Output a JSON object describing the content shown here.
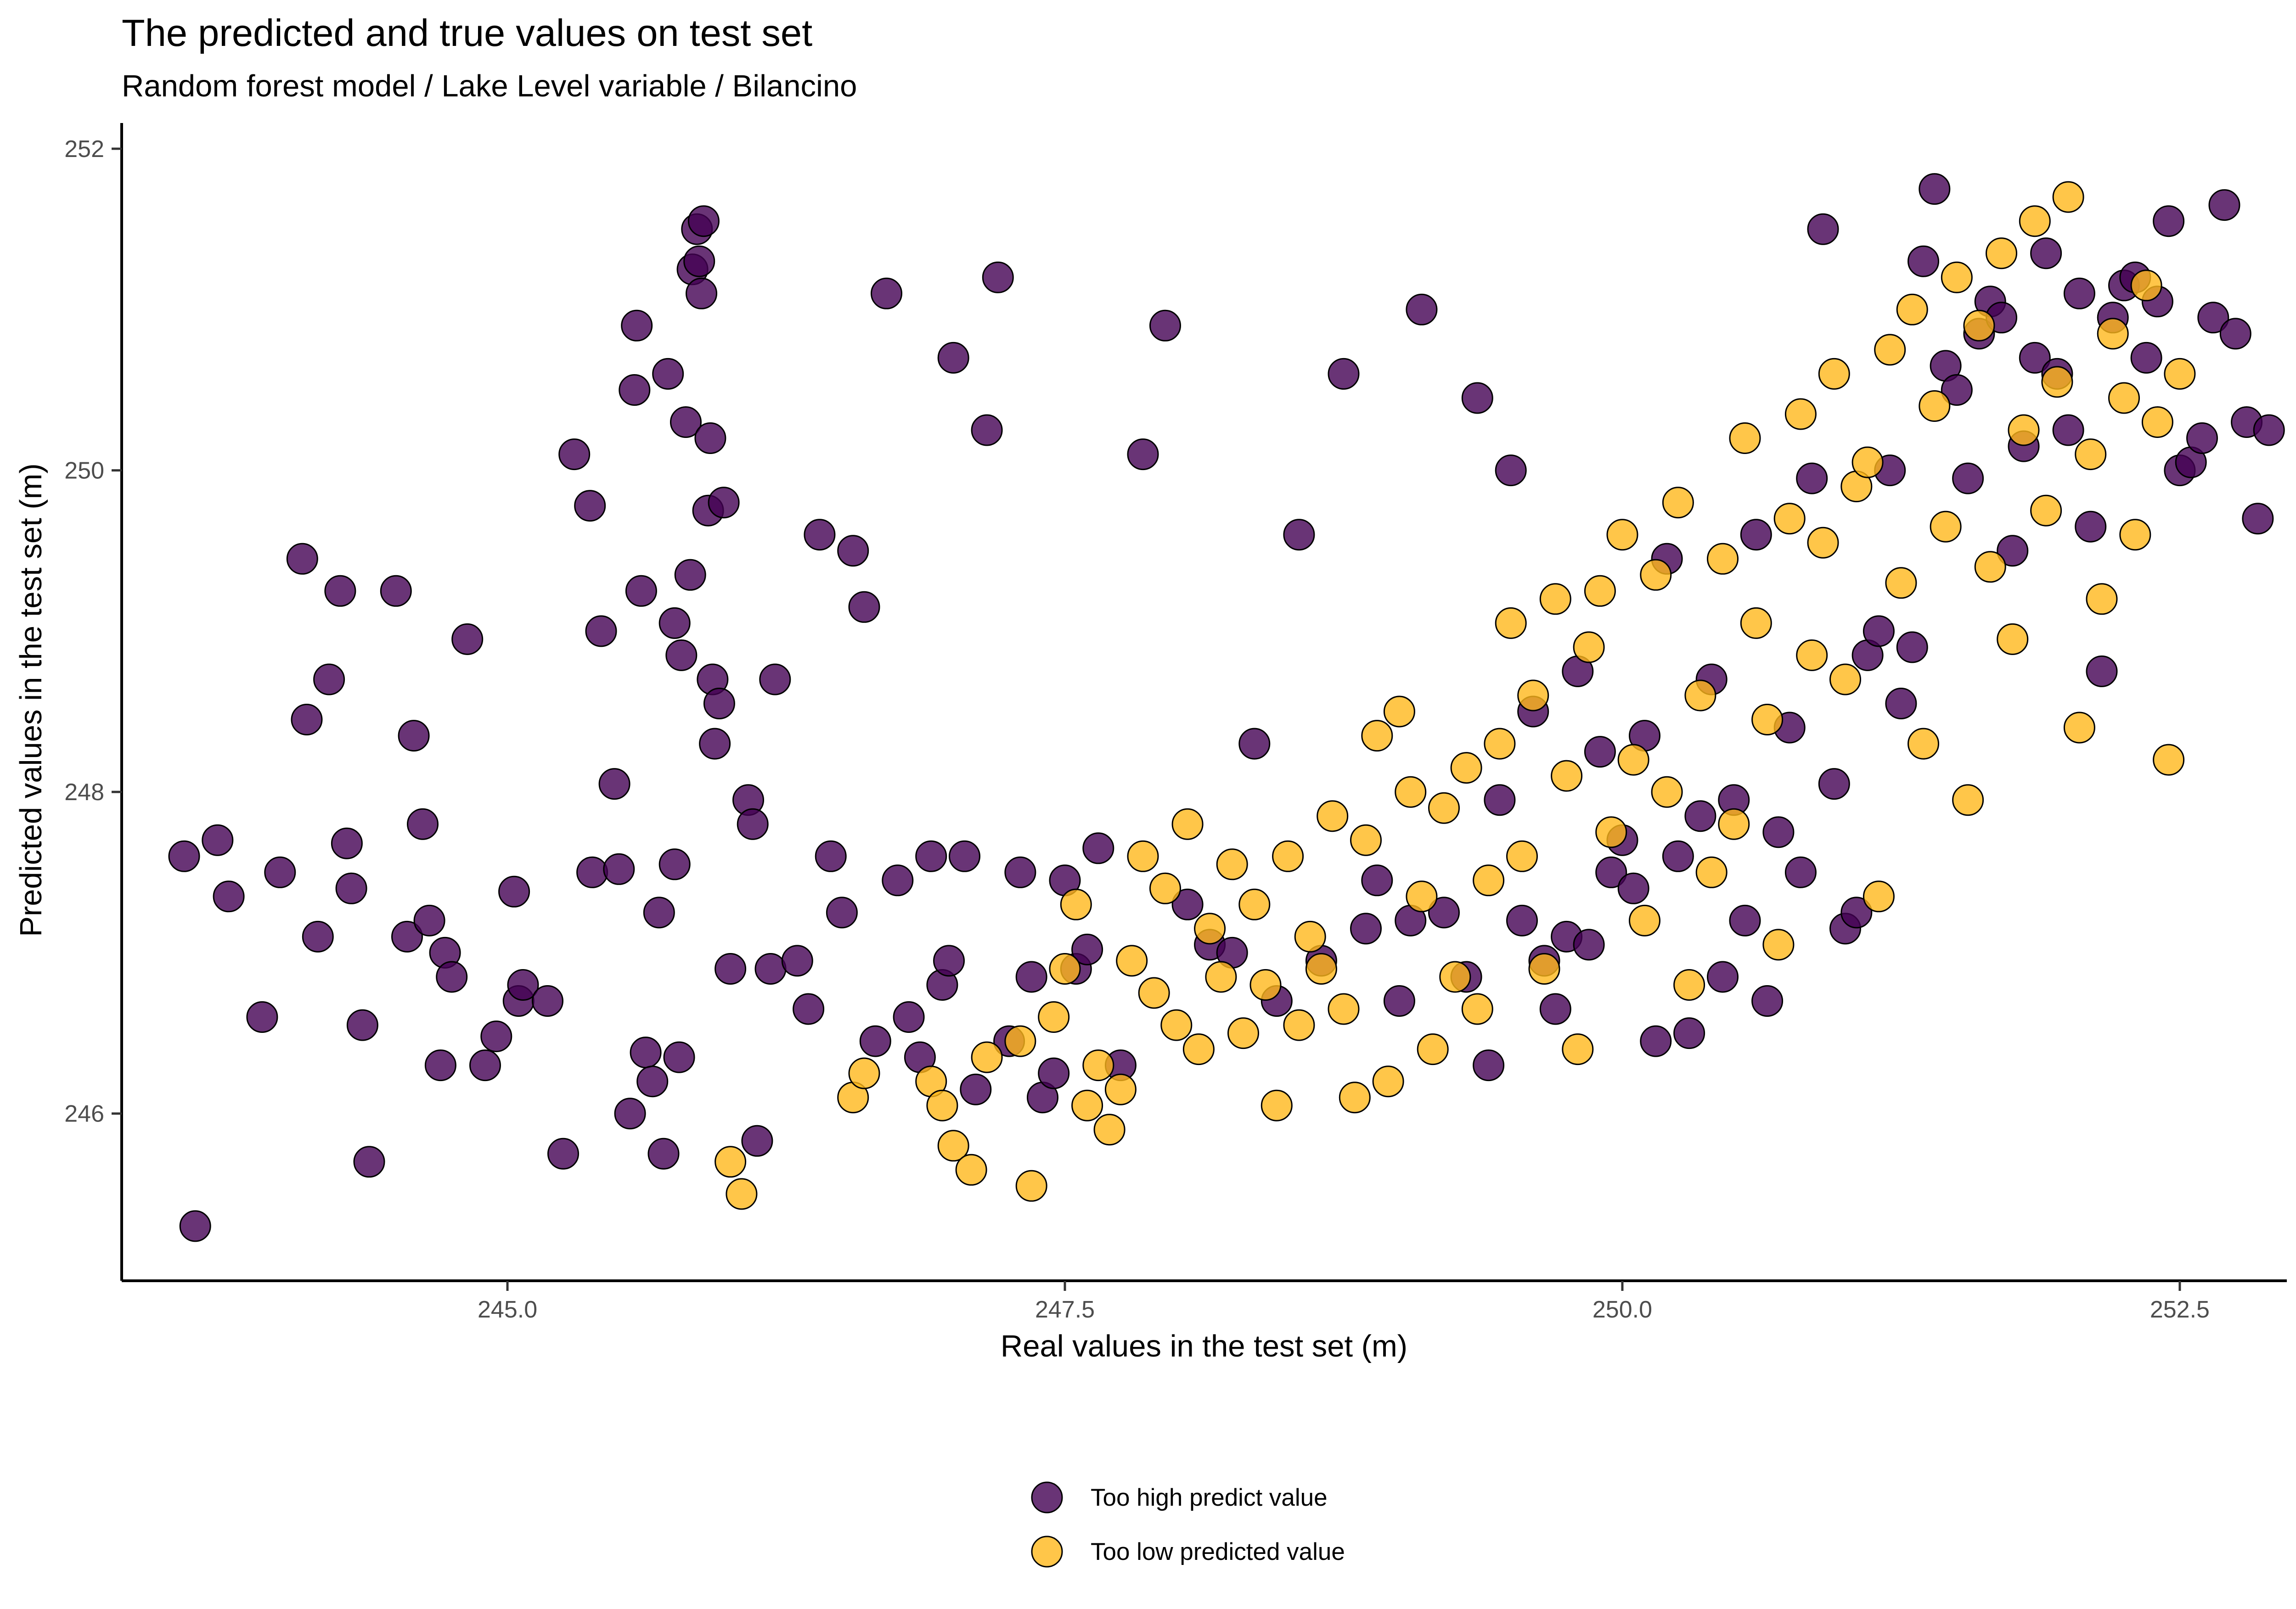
{
  "chart_data": {
    "type": "scatter",
    "title": "The predicted and true values on test set",
    "subtitle": "Random forest model / Lake Level variable / Bilancino",
    "xlabel": "Real values in the test set (m)",
    "ylabel": "Predicted values in the test set (m)",
    "xlim": [
      243.27,
      252.98
    ],
    "ylim": [
      244.96,
      252.16
    ],
    "x_ticks": [
      245.0,
      247.5,
      250.0,
      252.5
    ],
    "x_tick_labels": [
      "245.0",
      "247.5",
      "250.0",
      "252.5"
    ],
    "y_ticks": [
      246,
      248,
      250,
      252
    ],
    "y_tick_labels": [
      "246",
      "248",
      "250",
      "252"
    ],
    "grid": false,
    "legend_position": "bottom",
    "series": [
      {
        "name": "Too high predict value",
        "color": "#440154",
        "points": [
          [
            243.6,
            245.3
          ],
          [
            243.55,
            247.6
          ],
          [
            243.7,
            247.7
          ],
          [
            243.75,
            247.35
          ],
          [
            243.9,
            246.6
          ],
          [
            243.98,
            247.5
          ],
          [
            244.08,
            249.45
          ],
          [
            244.1,
            248.45
          ],
          [
            244.15,
            247.1
          ],
          [
            244.2,
            248.7
          ],
          [
            244.25,
            249.25
          ],
          [
            244.28,
            247.68
          ],
          [
            244.3,
            247.4
          ],
          [
            244.35,
            246.55
          ],
          [
            244.38,
            245.7
          ],
          [
            244.5,
            249.25
          ],
          [
            244.55,
            247.1
          ],
          [
            244.58,
            248.35
          ],
          [
            244.62,
            247.8
          ],
          [
            244.65,
            247.2
          ],
          [
            244.7,
            246.3
          ],
          [
            244.72,
            247.0
          ],
          [
            244.75,
            246.85
          ],
          [
            244.82,
            248.95
          ],
          [
            244.9,
            246.3
          ],
          [
            244.95,
            246.48
          ],
          [
            245.03,
            247.38
          ],
          [
            245.05,
            246.7
          ],
          [
            245.07,
            246.8
          ],
          [
            245.18,
            246.7
          ],
          [
            245.25,
            245.75
          ],
          [
            245.3,
            250.1
          ],
          [
            245.37,
            249.78
          ],
          [
            245.38,
            247.5
          ],
          [
            245.42,
            249.0
          ],
          [
            245.48,
            248.05
          ],
          [
            245.5,
            247.52
          ],
          [
            245.55,
            246.0
          ],
          [
            245.57,
            250.5
          ],
          [
            245.58,
            250.9
          ],
          [
            245.6,
            249.25
          ],
          [
            245.62,
            246.38
          ],
          [
            245.65,
            246.2
          ],
          [
            245.68,
            247.25
          ],
          [
            245.7,
            245.75
          ],
          [
            245.72,
            250.6
          ],
          [
            245.75,
            249.05
          ],
          [
            245.75,
            247.55
          ],
          [
            245.77,
            246.35
          ],
          [
            245.78,
            248.85
          ],
          [
            245.8,
            250.3
          ],
          [
            245.82,
            249.35
          ],
          [
            245.83,
            251.25
          ],
          [
            245.85,
            251.5
          ],
          [
            245.86,
            251.3
          ],
          [
            245.87,
            251.1
          ],
          [
            245.88,
            251.55
          ],
          [
            245.9,
            249.75
          ],
          [
            245.91,
            250.2
          ],
          [
            245.92,
            248.7
          ],
          [
            245.93,
            248.3
          ],
          [
            245.95,
            248.55
          ],
          [
            245.97,
            249.8
          ],
          [
            246.0,
            246.9
          ],
          [
            246.08,
            247.95
          ],
          [
            246.1,
            247.8
          ],
          [
            246.12,
            245.83
          ],
          [
            246.18,
            246.9
          ],
          [
            246.2,
            248.7
          ],
          [
            246.3,
            246.95
          ],
          [
            246.35,
            246.65
          ],
          [
            246.4,
            249.6
          ],
          [
            246.45,
            247.6
          ],
          [
            246.5,
            247.25
          ],
          [
            246.55,
            249.5
          ],
          [
            246.6,
            249.15
          ],
          [
            246.65,
            246.45
          ],
          [
            246.7,
            251.1
          ],
          [
            246.75,
            247.45
          ],
          [
            246.8,
            246.6
          ],
          [
            246.85,
            246.35
          ],
          [
            246.9,
            247.6
          ],
          [
            246.95,
            246.8
          ],
          [
            246.98,
            246.95
          ],
          [
            247.0,
            250.7
          ],
          [
            247.05,
            247.6
          ],
          [
            247.1,
            246.15
          ],
          [
            247.15,
            250.25
          ],
          [
            247.2,
            251.2
          ],
          [
            247.25,
            246.45
          ],
          [
            247.3,
            247.5
          ],
          [
            247.35,
            246.85
          ],
          [
            247.4,
            246.1
          ],
          [
            247.45,
            246.25
          ],
          [
            247.5,
            247.45
          ],
          [
            247.55,
            246.9
          ],
          [
            247.6,
            247.02
          ],
          [
            247.65,
            247.65
          ],
          [
            247.75,
            246.3
          ],
          [
            247.85,
            250.1
          ],
          [
            247.95,
            250.9
          ],
          [
            248.05,
            247.3
          ],
          [
            248.15,
            247.05
          ],
          [
            248.25,
            247.0
          ],
          [
            248.35,
            248.3
          ],
          [
            248.45,
            246.7
          ],
          [
            248.55,
            249.6
          ],
          [
            248.65,
            246.95
          ],
          [
            248.75,
            250.6
          ],
          [
            248.85,
            247.15
          ],
          [
            248.9,
            247.45
          ],
          [
            249.0,
            246.7
          ],
          [
            249.05,
            247.2
          ],
          [
            249.1,
            251.0
          ],
          [
            249.2,
            247.25
          ],
          [
            249.3,
            246.85
          ],
          [
            249.35,
            250.45
          ],
          [
            249.4,
            246.3
          ],
          [
            249.45,
            247.95
          ],
          [
            249.5,
            250.0
          ],
          [
            249.55,
            247.2
          ],
          [
            249.6,
            248.5
          ],
          [
            249.65,
            246.95
          ],
          [
            249.7,
            246.65
          ],
          [
            249.75,
            247.1
          ],
          [
            249.8,
            248.75
          ],
          [
            249.85,
            247.05
          ],
          [
            249.9,
            248.25
          ],
          [
            249.95,
            247.5
          ],
          [
            250.0,
            247.7
          ],
          [
            250.05,
            247.4
          ],
          [
            250.1,
            248.35
          ],
          [
            250.15,
            246.45
          ],
          [
            250.2,
            249.45
          ],
          [
            250.25,
            247.6
          ],
          [
            250.3,
            246.5
          ],
          [
            250.35,
            247.85
          ],
          [
            250.4,
            248.7
          ],
          [
            250.45,
            246.85
          ],
          [
            250.5,
            247.95
          ],
          [
            250.55,
            247.2
          ],
          [
            250.6,
            249.6
          ],
          [
            250.65,
            246.7
          ],
          [
            250.7,
            247.75
          ],
          [
            250.75,
            248.4
          ],
          [
            250.8,
            247.5
          ],
          [
            250.85,
            249.95
          ],
          [
            250.9,
            251.5
          ],
          [
            250.95,
            248.05
          ],
          [
            251.0,
            247.15
          ],
          [
            251.05,
            247.25
          ],
          [
            251.1,
            248.85
          ],
          [
            251.15,
            249.0
          ],
          [
            251.2,
            250.0
          ],
          [
            251.25,
            248.55
          ],
          [
            251.3,
            248.9
          ],
          [
            251.35,
            251.3
          ],
          [
            251.4,
            251.75
          ],
          [
            251.45,
            250.65
          ],
          [
            251.5,
            250.5
          ],
          [
            251.55,
            249.95
          ],
          [
            251.6,
            250.85
          ],
          [
            251.65,
            251.05
          ],
          [
            251.7,
            250.95
          ],
          [
            251.75,
            249.5
          ],
          [
            251.8,
            250.15
          ],
          [
            251.85,
            250.7
          ],
          [
            251.9,
            251.35
          ],
          [
            251.95,
            250.6
          ],
          [
            252.0,
            250.25
          ],
          [
            252.05,
            251.1
          ],
          [
            252.1,
            249.65
          ],
          [
            252.15,
            248.75
          ],
          [
            252.2,
            250.95
          ],
          [
            252.25,
            251.15
          ],
          [
            252.3,
            251.2
          ],
          [
            252.35,
            250.7
          ],
          [
            252.4,
            251.05
          ],
          [
            252.45,
            251.55
          ],
          [
            252.5,
            250.0
          ],
          [
            252.55,
            250.05
          ],
          [
            252.6,
            250.2
          ],
          [
            252.65,
            250.95
          ],
          [
            252.7,
            251.65
          ],
          [
            252.75,
            250.85
          ],
          [
            252.8,
            250.3
          ],
          [
            252.85,
            249.7
          ],
          [
            252.9,
            250.25
          ]
        ]
      },
      {
        "name": "Too low predicted value",
        "color": "#ffb81c",
        "points": [
          [
            246.0,
            245.7
          ],
          [
            246.05,
            245.5
          ],
          [
            246.55,
            246.1
          ],
          [
            246.6,
            246.25
          ],
          [
            246.9,
            246.2
          ],
          [
            246.95,
            246.05
          ],
          [
            247.0,
            245.8
          ],
          [
            247.08,
            245.65
          ],
          [
            247.15,
            246.35
          ],
          [
            247.3,
            246.45
          ],
          [
            247.35,
            245.55
          ],
          [
            247.45,
            246.6
          ],
          [
            247.5,
            246.9
          ],
          [
            247.55,
            247.3
          ],
          [
            247.6,
            246.05
          ],
          [
            247.65,
            246.3
          ],
          [
            247.7,
            245.9
          ],
          [
            247.75,
            246.15
          ],
          [
            247.8,
            246.95
          ],
          [
            247.85,
            247.6
          ],
          [
            247.9,
            246.75
          ],
          [
            247.95,
            247.4
          ],
          [
            248.0,
            246.55
          ],
          [
            248.05,
            247.8
          ],
          [
            248.1,
            246.4
          ],
          [
            248.15,
            247.15
          ],
          [
            248.2,
            246.85
          ],
          [
            248.25,
            247.55
          ],
          [
            248.3,
            246.5
          ],
          [
            248.35,
            247.3
          ],
          [
            248.4,
            246.8
          ],
          [
            248.45,
            246.05
          ],
          [
            248.5,
            247.6
          ],
          [
            248.55,
            246.55
          ],
          [
            248.6,
            247.1
          ],
          [
            248.65,
            246.9
          ],
          [
            248.7,
            247.85
          ],
          [
            248.75,
            246.65
          ],
          [
            248.8,
            246.1
          ],
          [
            248.85,
            247.7
          ],
          [
            248.9,
            248.35
          ],
          [
            248.95,
            246.2
          ],
          [
            249.0,
            248.5
          ],
          [
            249.05,
            248.0
          ],
          [
            249.1,
            247.35
          ],
          [
            249.15,
            246.4
          ],
          [
            249.2,
            247.9
          ],
          [
            249.25,
            246.85
          ],
          [
            249.3,
            248.15
          ],
          [
            249.35,
            246.65
          ],
          [
            249.4,
            247.45
          ],
          [
            249.45,
            248.3
          ],
          [
            249.5,
            249.05
          ],
          [
            249.55,
            247.6
          ],
          [
            249.6,
            248.6
          ],
          [
            249.65,
            246.9
          ],
          [
            249.7,
            249.2
          ],
          [
            249.75,
            248.1
          ],
          [
            249.8,
            246.4
          ],
          [
            249.85,
            248.9
          ],
          [
            249.9,
            249.25
          ],
          [
            249.95,
            247.75
          ],
          [
            250.0,
            249.6
          ],
          [
            250.05,
            248.2
          ],
          [
            250.1,
            247.2
          ],
          [
            250.15,
            249.35
          ],
          [
            250.2,
            248.0
          ],
          [
            250.25,
            249.8
          ],
          [
            250.3,
            246.8
          ],
          [
            250.35,
            248.6
          ],
          [
            250.4,
            247.5
          ],
          [
            250.45,
            249.45
          ],
          [
            250.5,
            247.8
          ],
          [
            250.55,
            250.2
          ],
          [
            250.6,
            249.05
          ],
          [
            250.65,
            248.45
          ],
          [
            250.7,
            247.05
          ],
          [
            250.75,
            249.7
          ],
          [
            250.8,
            250.35
          ],
          [
            250.85,
            248.85
          ],
          [
            250.9,
            249.55
          ],
          [
            250.95,
            250.6
          ],
          [
            251.0,
            248.7
          ],
          [
            251.05,
            249.9
          ],
          [
            251.1,
            250.05
          ],
          [
            251.15,
            247.35
          ],
          [
            251.2,
            250.75
          ],
          [
            251.25,
            249.3
          ],
          [
            251.3,
            251.0
          ],
          [
            251.35,
            248.3
          ],
          [
            251.4,
            250.4
          ],
          [
            251.45,
            249.65
          ],
          [
            251.5,
            251.2
          ],
          [
            251.55,
            247.95
          ],
          [
            251.6,
            250.9
          ],
          [
            251.65,
            249.4
          ],
          [
            251.7,
            251.35
          ],
          [
            251.75,
            248.95
          ],
          [
            251.8,
            250.25
          ],
          [
            251.85,
            251.55
          ],
          [
            251.9,
            249.75
          ],
          [
            251.95,
            250.55
          ],
          [
            252.0,
            251.7
          ],
          [
            252.05,
            248.4
          ],
          [
            252.1,
            250.1
          ],
          [
            252.15,
            249.2
          ],
          [
            252.2,
            250.85
          ],
          [
            252.25,
            250.45
          ],
          [
            252.3,
            249.6
          ],
          [
            252.35,
            251.15
          ],
          [
            252.4,
            250.3
          ],
          [
            252.45,
            248.2
          ],
          [
            252.5,
            250.6
          ]
        ]
      }
    ]
  }
}
